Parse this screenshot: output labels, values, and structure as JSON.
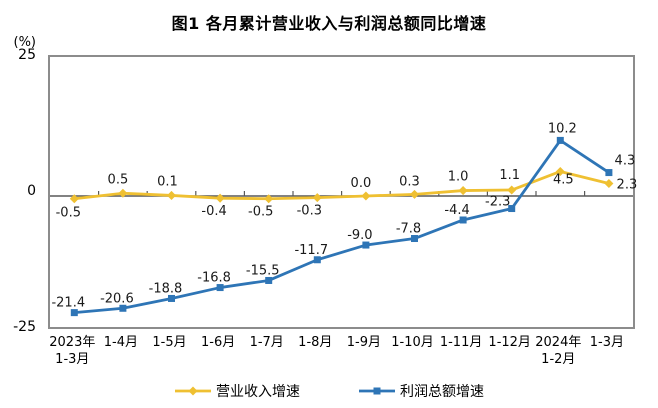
{
  "chart_data": {
    "type": "line",
    "title": "图1  各月累计营业收入与利润总额同比增速",
    "ylabel_unit": "(%)",
    "ylim": [
      -25,
      25
    ],
    "yticks": [
      25,
      0,
      -25
    ],
    "grid": false,
    "legend_position": "bottom",
    "frame_color": "#8c8c8c",
    "axis_color": "#595959",
    "categories": [
      "2023年\n1-3月",
      "1-4月",
      "1-5月",
      "1-6月",
      "1-7月",
      "1-8月",
      "1-9月",
      "1-10月",
      "1-11月",
      "1-12月",
      "2024年\n1-2月",
      "1-3月"
    ],
    "series": [
      {
        "name": "营业收入增速",
        "color": "#EFC032",
        "marker": "diamond",
        "values": [
          -0.5,
          0.5,
          0.1,
          -0.4,
          -0.5,
          -0.3,
          0.0,
          0.3,
          1.0,
          1.1,
          4.5,
          2.3
        ]
      },
      {
        "name": "利润总额增速",
        "color": "#2E75B6",
        "marker": "square",
        "values": [
          -21.4,
          -20.6,
          -18.8,
          -16.8,
          -15.5,
          -11.7,
          -9.0,
          -7.8,
          -4.4,
          -2.3,
          10.2,
          4.3
        ]
      }
    ]
  }
}
